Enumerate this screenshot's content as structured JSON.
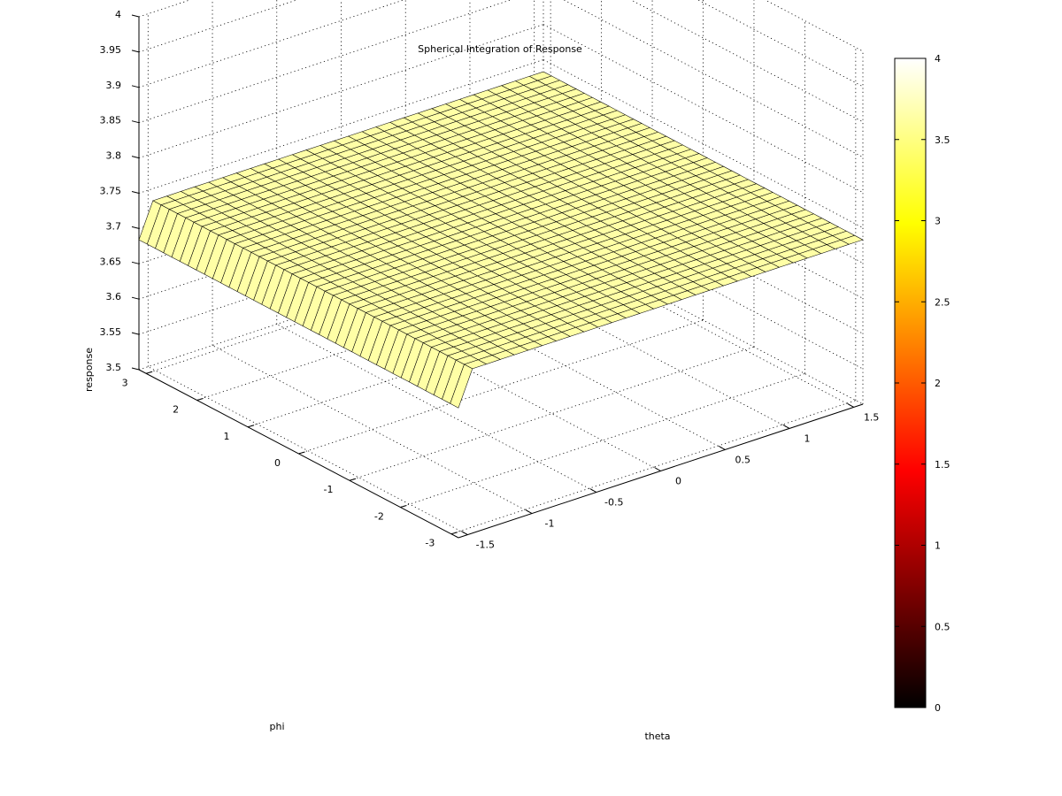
{
  "chart_data": {
    "type": "surface",
    "title": "Spherical Integration of Response",
    "xlabel": "theta",
    "ylabel": "phi",
    "zlabel": "response",
    "xlim": [
      -1.5708,
      1.5708
    ],
    "ylim": [
      -3.1416,
      3.1416
    ],
    "zlim": [
      3.5,
      4
    ],
    "xticks": [
      "-1.5",
      "-1",
      "-0.5",
      "0",
      "0.5",
      "1",
      "1.5"
    ],
    "xtick_values": [
      -1.5,
      -1,
      -0.5,
      0,
      0.5,
      1,
      1.5
    ],
    "yticks": [
      "-3",
      "-2",
      "-1",
      "0",
      "1",
      "2",
      "3"
    ],
    "ytick_values": [
      -3,
      -2,
      -1,
      0,
      1,
      2,
      3
    ],
    "zticks": [
      "3.5",
      "3.55",
      "3.6",
      "3.65",
      "3.7",
      "3.75",
      "3.8",
      "3.85",
      "3.9",
      "3.95",
      "4"
    ],
    "ztick_values": [
      3.5,
      3.55,
      3.6,
      3.65,
      3.7,
      3.75,
      3.8,
      3.85,
      3.9,
      3.95,
      4
    ],
    "grid": true,
    "surface": {
      "theta_samples": 30,
      "phi_samples": 40,
      "plateau_value": 3.733,
      "edge_value": 3.684,
      "edge_at": "theta minimum"
    },
    "colormap": "hot",
    "colorbar": {
      "range": [
        0,
        4
      ],
      "ticks": [
        "0",
        "0.5",
        "1",
        "1.5",
        "2",
        "2.5",
        "3",
        "3.5",
        "4"
      ],
      "tick_values": [
        0,
        0.5,
        1,
        1.5,
        2,
        2.5,
        3,
        3.5,
        4
      ]
    },
    "colors": {
      "surface_face": "#ffffa6"
    }
  }
}
